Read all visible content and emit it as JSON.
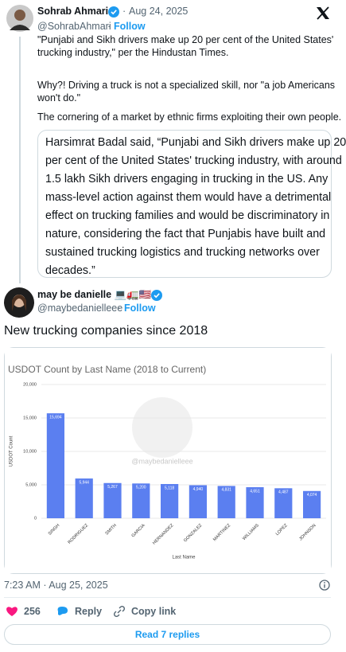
{
  "quoted_tweet": {
    "name": "Sohrab Ahmari",
    "separator": "·",
    "date": "Aug 24, 2025",
    "handle": "@SohrabAhmari",
    "follow": "Follow",
    "text_lines": [
      "\"Punjabi and Sikh drivers make up 20 per cent of the United States'",
      "trucking industry,\" per the Hindustan Times.",
      "Why?! Driving a truck is not a specialized skill, nor \"a job Americans",
      "won't do.\"",
      "The cornering of a market by ethnic firms exploiting their own people."
    ],
    "quote_lines": [
      "Harsimrat Badal said, “Punjabi and Sikh drivers make up 20",
      "per cent of the United States' trucking industry, with around",
      "1.5 lakh Sikh drivers engaging in trucking in the US. Any",
      "mass-level action against them would have a detrimental",
      "effect on trucking families and would be discriminatory in",
      "nature, considering the fact that Punjabis have built and",
      "sustained trucking logistics and trucking networks over",
      "decades.”"
    ]
  },
  "tweet": {
    "name": "may be danielle 💻🚛🇺🇸",
    "handle": "@maybedanielleee",
    "follow": "Follow",
    "text": "New trucking companies since 2018",
    "timestamp": "7:23 AM · Aug 25, 2025",
    "likes": "256",
    "reply": "Reply",
    "copy_link": "Copy link",
    "read_replies": "Read 7 replies"
  },
  "chart_data": {
    "type": "bar",
    "title": "USDOT Count by Last Name (2018 to Current)",
    "watermark": "@maybedanielleee",
    "x_label": "Last Name",
    "y_label": "USDOT Count",
    "categories": [
      "SINGH",
      "RODRIGUEZ",
      "SMITH",
      "GARCIA",
      "HERNANDEZ",
      "GONZALEZ",
      "MARTINEZ",
      "WILLIAMS",
      "LOPEZ",
      "JOHNSON"
    ],
    "values": [
      15694,
      5944,
      5267,
      5200,
      5118,
      4940,
      4831,
      4651,
      4487,
      4074
    ],
    "value_labels": [
      "15,694",
      "5,944",
      "5,267",
      "5,200",
      "5,118",
      "4,940",
      "4,831",
      "4,651",
      "4,487",
      "4,074"
    ],
    "color": "#5b7ff0",
    "grid": true,
    "ylim": [
      0,
      20000
    ],
    "yticks": [
      0,
      {
        "value": 5000,
        "label": "5,000"
      },
      {
        "value": 10000,
        "label": "10,000"
      },
      {
        "value": 15000,
        "label": "15,000"
      },
      {
        "value": 20000,
        "label": "20,000"
      }
    ]
  }
}
